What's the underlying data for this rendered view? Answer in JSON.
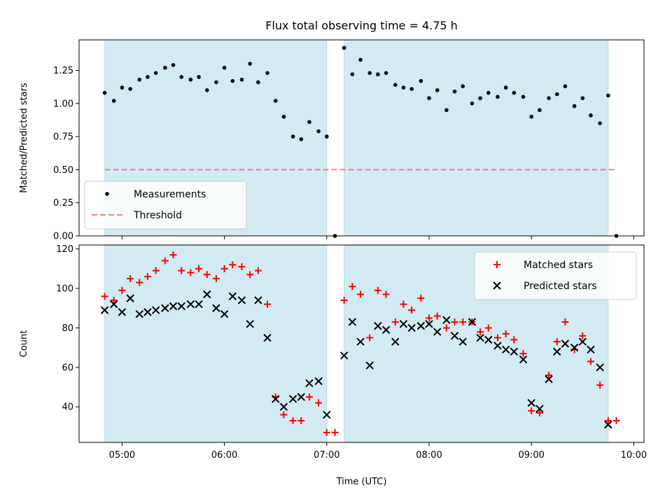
{
  "chart_data": [
    {
      "type": "scatter",
      "title": "Flux total observing time = 4.75 h",
      "xlabel": "",
      "ylabel": "Matched/Predicted stars",
      "xlim": [
        4.58,
        10.1
      ],
      "ylim": [
        0,
        1.48
      ],
      "yticks": [
        0.0,
        0.25,
        0.5,
        0.75,
        1.0,
        1.25
      ],
      "ytick_labels": [
        "0.00",
        "0.25",
        "0.50",
        "0.75",
        "1.00",
        "1.25"
      ],
      "legend_position": "lower-left",
      "shaded_intervals": [
        [
          4.83,
          7.0
        ],
        [
          7.17,
          9.75
        ]
      ],
      "shade_color": "#add8e6",
      "series": [
        {
          "name": "Measurements",
          "marker": "dot",
          "color": "#000000",
          "points": [
            [
              4.83,
              1.08
            ],
            [
              4.92,
              1.02
            ],
            [
              5.0,
              1.12
            ],
            [
              5.08,
              1.11
            ],
            [
              5.17,
              1.18
            ],
            [
              5.25,
              1.2
            ],
            [
              5.33,
              1.23
            ],
            [
              5.42,
              1.27
            ],
            [
              5.5,
              1.29
            ],
            [
              5.58,
              1.2
            ],
            [
              5.67,
              1.18
            ],
            [
              5.75,
              1.2
            ],
            [
              5.83,
              1.1
            ],
            [
              5.92,
              1.16
            ],
            [
              6.0,
              1.27
            ],
            [
              6.08,
              1.17
            ],
            [
              6.17,
              1.18
            ],
            [
              6.25,
              1.3
            ],
            [
              6.33,
              1.16
            ],
            [
              6.42,
              1.23
            ],
            [
              6.5,
              1.02
            ],
            [
              6.58,
              0.9
            ],
            [
              6.67,
              0.75
            ],
            [
              6.75,
              0.73
            ],
            [
              6.83,
              0.86
            ],
            [
              6.92,
              0.79
            ],
            [
              7.0,
              0.75
            ],
            [
              7.08,
              0.0
            ],
            [
              7.17,
              1.42
            ],
            [
              7.25,
              1.22
            ],
            [
              7.33,
              1.33
            ],
            [
              7.42,
              1.23
            ],
            [
              7.5,
              1.22
            ],
            [
              7.58,
              1.23
            ],
            [
              7.67,
              1.14
            ],
            [
              7.75,
              1.12
            ],
            [
              7.83,
              1.11
            ],
            [
              7.92,
              1.17
            ],
            [
              8.0,
              1.04
            ],
            [
              8.08,
              1.1
            ],
            [
              8.17,
              0.95
            ],
            [
              8.25,
              1.09
            ],
            [
              8.33,
              1.13
            ],
            [
              8.42,
              1.0
            ],
            [
              8.5,
              1.04
            ],
            [
              8.58,
              1.08
            ],
            [
              8.67,
              1.05
            ],
            [
              8.75,
              1.12
            ],
            [
              8.83,
              1.08
            ],
            [
              8.92,
              1.05
            ],
            [
              9.0,
              0.9
            ],
            [
              9.08,
              0.95
            ],
            [
              9.17,
              1.04
            ],
            [
              9.25,
              1.07
            ],
            [
              9.33,
              1.13
            ],
            [
              9.42,
              0.98
            ],
            [
              9.5,
              1.04
            ],
            [
              9.58,
              0.91
            ],
            [
              9.67,
              0.85
            ],
            [
              9.75,
              1.06
            ],
            [
              9.83,
              0.0
            ]
          ]
        },
        {
          "name": "Threshold",
          "marker": "dashed-line",
          "color": "#f08080",
          "x": [
            4.83,
            9.83
          ],
          "y": [
            0.5,
            0.5
          ]
        }
      ]
    },
    {
      "type": "scatter",
      "title": "",
      "xlabel": "Time (UTC)",
      "ylabel": "Count",
      "xlim": [
        4.58,
        10.1
      ],
      "ylim": [
        22,
        122
      ],
      "yticks": [
        40,
        60,
        80,
        100,
        120
      ],
      "ytick_labels": [
        "40",
        "60",
        "80",
        "100",
        "120"
      ],
      "xticks": [
        5,
        6,
        7,
        8,
        9,
        10
      ],
      "xtick_labels": [
        "05:00",
        "06:00",
        "07:00",
        "08:00",
        "09:00",
        "10:00"
      ],
      "legend_position": "upper-right",
      "shaded_intervals": [
        [
          4.83,
          7.0
        ],
        [
          7.17,
          9.75
        ]
      ],
      "shade_color": "#add8e6",
      "series": [
        {
          "name": "Matched stars",
          "marker": "plus",
          "color": "#ff0000",
          "points": [
            [
              4.83,
              96
            ],
            [
              4.92,
              94
            ],
            [
              5.0,
              99
            ],
            [
              5.08,
              105
            ],
            [
              5.17,
              103
            ],
            [
              5.25,
              106
            ],
            [
              5.33,
              109
            ],
            [
              5.42,
              114
            ],
            [
              5.5,
              117
            ],
            [
              5.58,
              109
            ],
            [
              5.67,
              108
            ],
            [
              5.75,
              110
            ],
            [
              5.83,
              107
            ],
            [
              5.92,
              105
            ],
            [
              6.0,
              110
            ],
            [
              6.08,
              112
            ],
            [
              6.17,
              111
            ],
            [
              6.25,
              107
            ],
            [
              6.33,
              109
            ],
            [
              6.42,
              92
            ],
            [
              6.5,
              45
            ],
            [
              6.58,
              36
            ],
            [
              6.67,
              33
            ],
            [
              6.75,
              33
            ],
            [
              6.83,
              45
            ],
            [
              6.92,
              42
            ],
            [
              7.0,
              27
            ],
            [
              7.08,
              27
            ],
            [
              7.17,
              94
            ],
            [
              7.25,
              101
            ],
            [
              7.33,
              97
            ],
            [
              7.42,
              75
            ],
            [
              7.5,
              99
            ],
            [
              7.58,
              97
            ],
            [
              7.67,
              83
            ],
            [
              7.75,
              92
            ],
            [
              7.83,
              89
            ],
            [
              7.92,
              95
            ],
            [
              8.0,
              85
            ],
            [
              8.08,
              86
            ],
            [
              8.17,
              80
            ],
            [
              8.25,
              83
            ],
            [
              8.33,
              83
            ],
            [
              8.42,
              83
            ],
            [
              8.5,
              78
            ],
            [
              8.58,
              80
            ],
            [
              8.67,
              75
            ],
            [
              8.75,
              77
            ],
            [
              8.83,
              74
            ],
            [
              8.92,
              67
            ],
            [
              9.0,
              38
            ],
            [
              9.08,
              37
            ],
            [
              9.17,
              56
            ],
            [
              9.25,
              73
            ],
            [
              9.33,
              83
            ],
            [
              9.42,
              69
            ],
            [
              9.5,
              76
            ],
            [
              9.58,
              63
            ],
            [
              9.67,
              51
            ],
            [
              9.75,
              33
            ],
            [
              9.83,
              33
            ]
          ]
        },
        {
          "name": "Predicted stars",
          "marker": "x",
          "color": "#000000",
          "points": [
            [
              4.83,
              89
            ],
            [
              4.92,
              92
            ],
            [
              5.0,
              88
            ],
            [
              5.08,
              95
            ],
            [
              5.17,
              87
            ],
            [
              5.25,
              88
            ],
            [
              5.33,
              89
            ],
            [
              5.42,
              90
            ],
            [
              5.5,
              91
            ],
            [
              5.58,
              91
            ],
            [
              5.67,
              92
            ],
            [
              5.75,
              92
            ],
            [
              5.83,
              97
            ],
            [
              5.92,
              90
            ],
            [
              6.0,
              87
            ],
            [
              6.08,
              96
            ],
            [
              6.17,
              94
            ],
            [
              6.25,
              82
            ],
            [
              6.33,
              94
            ],
            [
              6.42,
              75
            ],
            [
              6.5,
              44
            ],
            [
              6.58,
              40
            ],
            [
              6.67,
              44
            ],
            [
              6.75,
              45
            ],
            [
              6.83,
              52
            ],
            [
              6.92,
              53
            ],
            [
              7.0,
              36
            ],
            [
              7.17,
              66
            ],
            [
              7.25,
              83
            ],
            [
              7.33,
              73
            ],
            [
              7.42,
              61
            ],
            [
              7.5,
              81
            ],
            [
              7.58,
              79
            ],
            [
              7.67,
              73
            ],
            [
              7.75,
              82
            ],
            [
              7.83,
              80
            ],
            [
              7.92,
              81
            ],
            [
              8.0,
              82
            ],
            [
              8.08,
              78
            ],
            [
              8.17,
              84
            ],
            [
              8.25,
              76
            ],
            [
              8.33,
              73
            ],
            [
              8.42,
              83
            ],
            [
              8.5,
              75
            ],
            [
              8.58,
              74
            ],
            [
              8.67,
              71
            ],
            [
              8.75,
              69
            ],
            [
              8.83,
              68
            ],
            [
              8.92,
              64
            ],
            [
              9.0,
              42
            ],
            [
              9.08,
              39
            ],
            [
              9.17,
              54
            ],
            [
              9.25,
              68
            ],
            [
              9.33,
              72
            ],
            [
              9.42,
              70
            ],
            [
              9.5,
              73
            ],
            [
              9.58,
              69
            ],
            [
              9.67,
              60
            ],
            [
              9.75,
              31
            ]
          ]
        }
      ]
    }
  ]
}
